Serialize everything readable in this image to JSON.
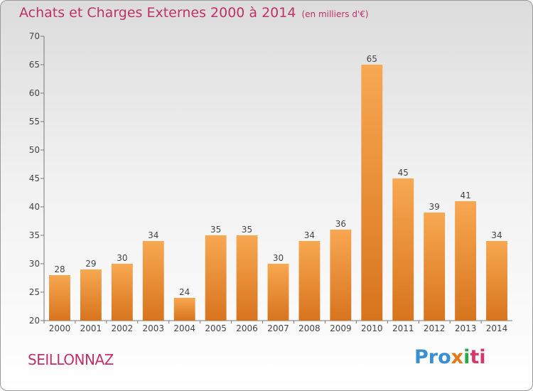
{
  "title": "Achats et Charges Externes 2000 à 2014",
  "unit": "(en milliers d'€)",
  "commune": "SEILLONNAZ",
  "brand": "Proxiti",
  "colors": {
    "bar_top": "#f7a851",
    "bar_bottom": "#d8741e",
    "title": "#c0306a"
  },
  "chart_data": {
    "type": "bar",
    "categories": [
      "2000",
      "2001",
      "2002",
      "2003",
      "2004",
      "2005",
      "2006",
      "2007",
      "2008",
      "2009",
      "2010",
      "2011",
      "2012",
      "2013",
      "2014"
    ],
    "values": [
      28,
      29,
      30,
      34,
      24,
      35,
      35,
      30,
      34,
      36,
      65,
      45,
      39,
      41,
      34
    ],
    "ylim": [
      20,
      70
    ],
    "yticks": [
      20,
      25,
      30,
      35,
      40,
      45,
      50,
      55,
      60,
      65,
      70
    ],
    "grid": false
  }
}
